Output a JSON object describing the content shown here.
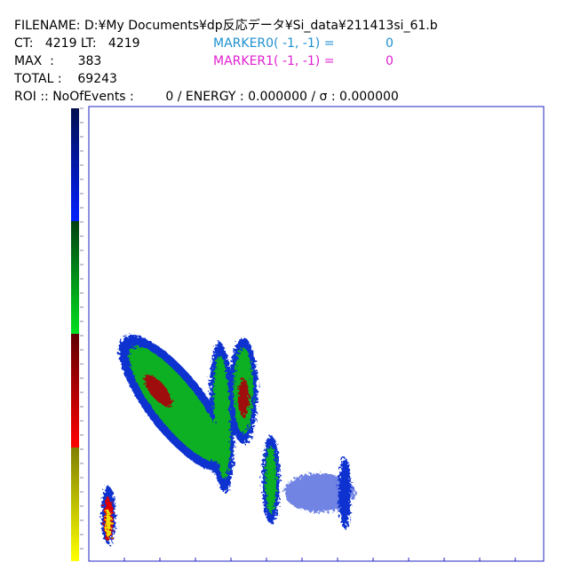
{
  "header": {
    "filename": "FILENAME: D:¥My Documents¥dp反応データ¥Si_data¥211413si_61.b",
    "ct": "CT:   4219 LT:   4219",
    "max": "MAX  :      383",
    "total": "TOTAL :    69243",
    "roi": "ROI :: NoOfEvents :        0 / ENERGY : 0.000000 / σ : 0.000000",
    "marker0_label": "MARKER0( -1, -1) =",
    "marker0_value": "0",
    "marker1_label": "MARKER1( -1, -1) =",
    "marker1_value": "0"
  }
}
